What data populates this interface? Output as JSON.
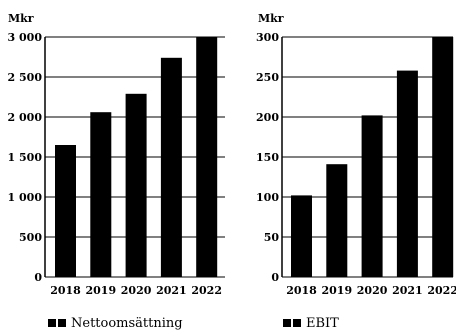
{
  "chart_data": [
    {
      "type": "bar",
      "unit_label": "Mkr",
      "categories": [
        "2018",
        "2019",
        "2020",
        "2021",
        "2022"
      ],
      "series": [
        {
          "name": "Nettoomsättning",
          "values": [
            1650,
            2060,
            2290,
            2740,
            3000
          ]
        }
      ],
      "ylim": [
        0,
        3000
      ],
      "yticks": [
        0,
        500,
        1000,
        1500,
        2000,
        2500,
        3000
      ],
      "ytick_labels": [
        "0",
        "500",
        "1 000",
        "1 500",
        "2 000",
        "2 500",
        "3 000"
      ],
      "grid": true,
      "legend": "bottom",
      "color": "#000000"
    },
    {
      "type": "bar",
      "unit_label": "Mkr",
      "categories": [
        "2018",
        "2019",
        "2020",
        "2021",
        "2022"
      ],
      "series": [
        {
          "name": "EBIT",
          "values": [
            102,
            141,
            202,
            258,
            300
          ]
        }
      ],
      "ylim": [
        0,
        300
      ],
      "yticks": [
        0,
        50,
        100,
        150,
        200,
        250,
        300
      ],
      "ytick_labels": [
        "0",
        "50",
        "100",
        "150",
        "200",
        "250",
        "300"
      ],
      "grid": true,
      "legend": "bottom",
      "color": "#000000"
    }
  ]
}
